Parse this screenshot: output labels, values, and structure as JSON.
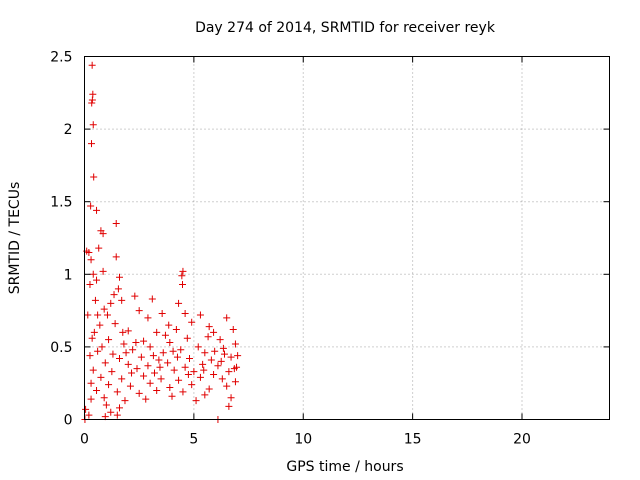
{
  "chart_data": {
    "type": "scatter",
    "title": "Day 274 of 2014, SRMTID for receiver reyk",
    "xlabel": "GPS time / hours",
    "ylabel": "SRMTID / TECUs",
    "xlim": [
      0,
      24
    ],
    "ylim": [
      0,
      2.5
    ],
    "xticks": [
      0,
      5,
      10,
      15,
      20
    ],
    "xtick_labels": [
      "0",
      "5",
      "10",
      "15",
      "20"
    ],
    "yticks": [
      0,
      0.5,
      1,
      1.5,
      2,
      2.5
    ],
    "ytick_labels": [
      "0",
      "0.5",
      "1",
      "1.5",
      "2",
      "2.5"
    ],
    "grid": true,
    "marker": "+",
    "color": "#e00000",
    "series": [
      {
        "name": "reyk",
        "points": [
          [
            0.35,
            2.44
          ],
          [
            0.38,
            2.24
          ],
          [
            0.36,
            2.2
          ],
          [
            0.33,
            2.18
          ],
          [
            0.4,
            2.03
          ],
          [
            0.32,
            1.9
          ],
          [
            0.42,
            1.67
          ],
          [
            0.28,
            1.47
          ],
          [
            0.55,
            1.44
          ],
          [
            0.75,
            1.3
          ],
          [
            0.85,
            1.28
          ],
          [
            1.45,
            1.35
          ],
          [
            0.1,
            1.16
          ],
          [
            0.2,
            1.15
          ],
          [
            0.3,
            1.1
          ],
          [
            0.65,
            1.18
          ],
          [
            1.45,
            1.12
          ],
          [
            0.85,
            1.02
          ],
          [
            0.4,
            1.0
          ],
          [
            4.5,
            1.02
          ],
          [
            4.45,
            0.99
          ],
          [
            1.6,
            0.98
          ],
          [
            0.55,
            0.96
          ],
          [
            0.25,
            0.93
          ],
          [
            4.48,
            0.93
          ],
          [
            1.55,
            0.9
          ],
          [
            1.35,
            0.86
          ],
          [
            0.5,
            0.82
          ],
          [
            2.3,
            0.85
          ],
          [
            1.7,
            0.82
          ],
          [
            3.1,
            0.83
          ],
          [
            0.9,
            0.76
          ],
          [
            0.15,
            0.72
          ],
          [
            1.2,
            0.8
          ],
          [
            4.3,
            0.8
          ],
          [
            2.5,
            0.75
          ],
          [
            3.55,
            0.73
          ],
          [
            1.05,
            0.72
          ],
          [
            2.9,
            0.7
          ],
          [
            4.6,
            0.73
          ],
          [
            5.3,
            0.72
          ],
          [
            6.5,
            0.7
          ],
          [
            0.7,
            0.65
          ],
          [
            1.4,
            0.66
          ],
          [
            3.85,
            0.65
          ],
          [
            4.9,
            0.67
          ],
          [
            5.7,
            0.64
          ],
          [
            6.8,
            0.62
          ],
          [
            0.45,
            0.6
          ],
          [
            2.0,
            0.61
          ],
          [
            3.3,
            0.6
          ],
          [
            4.2,
            0.62
          ],
          [
            5.9,
            0.6
          ],
          [
            0.35,
            0.56
          ],
          [
            1.1,
            0.55
          ],
          [
            2.7,
            0.54
          ],
          [
            4.7,
            0.56
          ],
          [
            6.2,
            0.55
          ],
          [
            0.8,
            0.5
          ],
          [
            1.8,
            0.52
          ],
          [
            3.0,
            0.5
          ],
          [
            3.9,
            0.53
          ],
          [
            5.2,
            0.5
          ],
          [
            6.9,
            0.52
          ],
          [
            0.6,
            0.47
          ],
          [
            1.3,
            0.45
          ],
          [
            2.2,
            0.48
          ],
          [
            3.6,
            0.46
          ],
          [
            4.4,
            0.48
          ],
          [
            5.5,
            0.46
          ],
          [
            6.4,
            0.45
          ],
          [
            0.25,
            0.44
          ],
          [
            1.6,
            0.42
          ],
          [
            2.6,
            0.43
          ],
          [
            3.4,
            0.41
          ],
          [
            4.8,
            0.42
          ],
          [
            5.8,
            0.41
          ],
          [
            6.7,
            0.43
          ],
          [
            0.95,
            0.39
          ],
          [
            2.0,
            0.38
          ],
          [
            2.9,
            0.37
          ],
          [
            3.8,
            0.39
          ],
          [
            4.6,
            0.36
          ],
          [
            5.4,
            0.38
          ],
          [
            6.1,
            0.37
          ],
          [
            6.95,
            0.36
          ],
          [
            0.4,
            0.34
          ],
          [
            1.25,
            0.33
          ],
          [
            2.4,
            0.35
          ],
          [
            3.2,
            0.32
          ],
          [
            4.1,
            0.34
          ],
          [
            5.0,
            0.33
          ],
          [
            5.9,
            0.31
          ],
          [
            6.6,
            0.33
          ],
          [
            0.75,
            0.29
          ],
          [
            1.7,
            0.28
          ],
          [
            2.7,
            0.3
          ],
          [
            3.5,
            0.28
          ],
          [
            4.3,
            0.27
          ],
          [
            5.3,
            0.29
          ],
          [
            6.3,
            0.28
          ],
          [
            6.9,
            0.26
          ],
          [
            0.3,
            0.25
          ],
          [
            1.1,
            0.24
          ],
          [
            2.1,
            0.23
          ],
          [
            3.0,
            0.25
          ],
          [
            3.9,
            0.22
          ],
          [
            4.9,
            0.24
          ],
          [
            5.7,
            0.21
          ],
          [
            6.5,
            0.23
          ],
          [
            0.55,
            0.2
          ],
          [
            1.5,
            0.19
          ],
          [
            2.5,
            0.18
          ],
          [
            3.3,
            0.2
          ],
          [
            4.5,
            0.19
          ],
          [
            5.5,
            0.17
          ],
          [
            6.7,
            0.15
          ],
          [
            0.9,
            0.15
          ],
          [
            1.85,
            0.13
          ],
          [
            2.8,
            0.14
          ],
          [
            4.0,
            0.16
          ],
          [
            5.1,
            0.13
          ],
          [
            6.6,
            0.09
          ],
          [
            1.0,
            0.1
          ],
          [
            1.6,
            0.08
          ],
          [
            0.05,
            0.07
          ],
          [
            1.2,
            0.05
          ],
          [
            0.2,
            0.03
          ],
          [
            0.95,
            0.02
          ],
          [
            1.5,
            0.03
          ],
          [
            0.02,
            0.0
          ],
          [
            6.1,
            0.0
          ],
          [
            0.3,
            0.14
          ],
          [
            1.75,
            0.6
          ],
          [
            2.35,
            0.53
          ],
          [
            3.7,
            0.58
          ],
          [
            4.25,
            0.43
          ],
          [
            5.65,
            0.57
          ],
          [
            6.35,
            0.49
          ],
          [
            7.0,
            0.44
          ],
          [
            0.6,
            0.72
          ],
          [
            1.9,
            0.46
          ],
          [
            3.15,
            0.44
          ],
          [
            4.75,
            0.31
          ],
          [
            5.95,
            0.47
          ],
          [
            6.85,
            0.35
          ],
          [
            2.15,
            0.32
          ],
          [
            3.45,
            0.36
          ],
          [
            4.05,
            0.47
          ],
          [
            5.45,
            0.34
          ],
          [
            6.25,
            0.4
          ]
        ]
      }
    ]
  }
}
